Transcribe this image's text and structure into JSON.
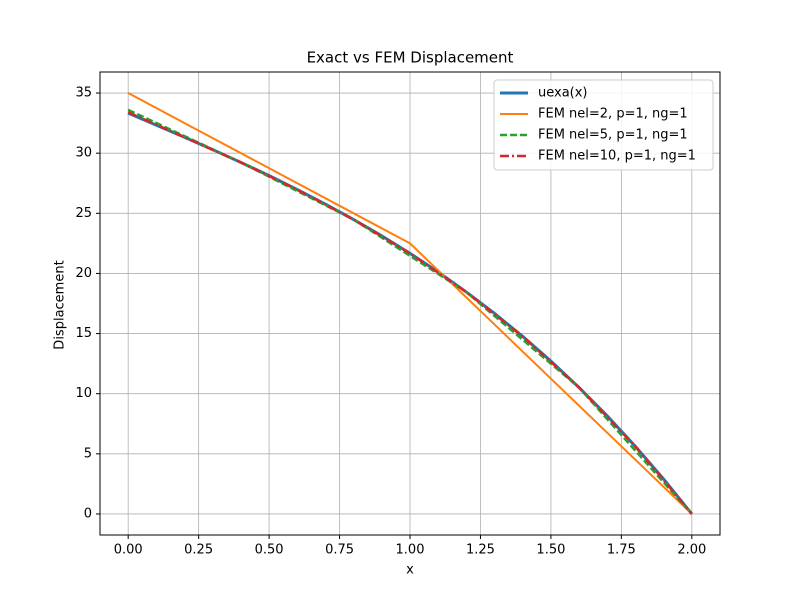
{
  "chart_data": {
    "type": "line",
    "title": "Exact vs FEM Displacement",
    "xlabel": "x",
    "ylabel": "Displacement",
    "xlim": [
      -0.1,
      2.1
    ],
    "ylim": [
      -1.75,
      36.75
    ],
    "xticks": [
      {
        "value": 0,
        "label": "0.00"
      },
      {
        "value": 0.25,
        "label": "0.25"
      },
      {
        "value": 0.5,
        "label": "0.50"
      },
      {
        "value": 0.75,
        "label": "0.75"
      },
      {
        "value": 1,
        "label": "1.00"
      },
      {
        "value": 1.25,
        "label": "1.25"
      },
      {
        "value": 1.5,
        "label": "1.50"
      },
      {
        "value": 1.75,
        "label": "1.75"
      },
      {
        "value": 2,
        "label": "2.00"
      }
    ],
    "yticks": [
      0,
      5,
      10,
      15,
      20,
      25,
      30,
      35
    ],
    "grid": true,
    "legend": "upper right",
    "series": [
      {
        "name": "uexa(x)",
        "color": "#1f77b4",
        "linestyle": "solid",
        "linewidth": 3,
        "x": [
          0,
          0.1,
          0.2,
          0.3,
          0.4,
          0.5,
          0.6,
          0.7,
          0.8,
          0.9,
          1.0,
          1.1,
          1.2,
          1.3,
          1.4,
          1.5,
          1.6,
          1.7,
          1.8,
          1.9,
          2.0
        ],
        "values": [
          33.33,
          32.33,
          31.32,
          30.29,
          29.23,
          28.13,
          26.97,
          25.76,
          24.48,
          23.12,
          21.67,
          20.12,
          18.45,
          16.67,
          14.76,
          12.71,
          10.51,
          8.15,
          5.61,
          2.9,
          0
        ]
      },
      {
        "name": "FEM nel=2, p=1, ng=1",
        "color": "#ff7f0e",
        "linestyle": "solid",
        "linewidth": 2,
        "x": [
          0,
          1,
          2
        ],
        "values": [
          35,
          22.5,
          0
        ]
      },
      {
        "name": "FEM nel=5, p=1, ng=1",
        "color": "#2ca02c",
        "linestyle": "dashed",
        "linewidth": 2.5,
        "x": [
          0,
          0.4,
          0.8,
          1.2,
          1.6,
          2.0
        ],
        "values": [
          33.6,
          29.23,
          24.48,
          18.45,
          10.51,
          0
        ]
      },
      {
        "name": "FEM nel=10, p=1, ng=1",
        "color": "#d62728",
        "linestyle": "dashdot",
        "linewidth": 2.5,
        "x": [
          0,
          0.2,
          0.4,
          0.6,
          0.8,
          1.0,
          1.2,
          1.4,
          1.6,
          1.8,
          2.0
        ],
        "values": [
          33.4,
          31.32,
          29.23,
          26.97,
          24.48,
          21.67,
          18.45,
          14.76,
          10.51,
          5.61,
          0
        ]
      }
    ]
  }
}
